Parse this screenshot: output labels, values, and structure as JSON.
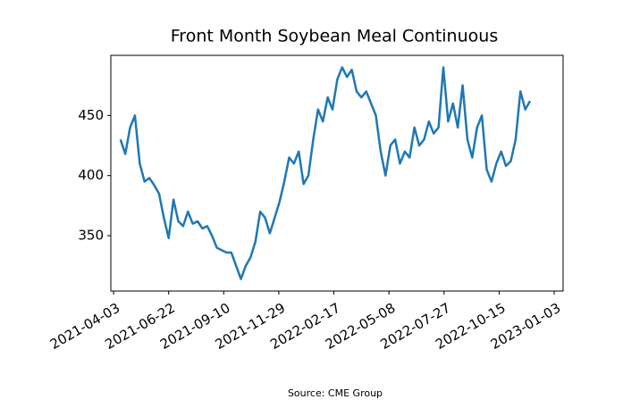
{
  "chart_data": {
    "type": "line",
    "title": "Front Month Soybean Meal Continuous",
    "source": "Source: CME Group",
    "x": [
      "2021-04-13",
      "2021-04-20",
      "2021-04-27",
      "2021-05-04",
      "2021-05-11",
      "2021-05-18",
      "2021-05-25",
      "2021-06-01",
      "2021-06-08",
      "2021-06-15",
      "2021-06-22",
      "2021-06-29",
      "2021-07-06",
      "2021-07-13",
      "2021-07-20",
      "2021-07-27",
      "2021-08-03",
      "2021-08-10",
      "2021-08-17",
      "2021-08-24",
      "2021-08-31",
      "2021-09-07",
      "2021-09-14",
      "2021-09-21",
      "2021-09-28",
      "2021-10-05",
      "2021-10-12",
      "2021-10-19",
      "2021-10-26",
      "2021-11-02",
      "2021-11-09",
      "2021-11-16",
      "2021-11-23",
      "2021-11-30",
      "2021-12-07",
      "2021-12-14",
      "2021-12-21",
      "2021-12-28",
      "2022-01-04",
      "2022-01-11",
      "2022-01-18",
      "2022-01-25",
      "2022-02-01",
      "2022-02-08",
      "2022-02-15",
      "2022-02-22",
      "2022-03-01",
      "2022-03-08",
      "2022-03-15",
      "2022-03-22",
      "2022-03-29",
      "2022-04-05",
      "2022-04-12",
      "2022-04-19",
      "2022-04-26",
      "2022-05-03",
      "2022-05-10",
      "2022-05-17",
      "2022-05-24",
      "2022-05-31",
      "2022-06-07",
      "2022-06-14",
      "2022-06-21",
      "2022-06-28",
      "2022-07-05",
      "2022-07-12",
      "2022-07-19",
      "2022-07-26",
      "2022-08-02",
      "2022-08-09",
      "2022-08-16",
      "2022-08-23",
      "2022-08-30",
      "2022-09-06",
      "2022-09-13",
      "2022-09-20",
      "2022-09-27",
      "2022-10-04",
      "2022-10-11",
      "2022-10-18",
      "2022-10-25",
      "2022-11-01",
      "2022-11-08",
      "2022-11-15",
      "2022-11-22",
      "2022-11-29"
    ],
    "series": [
      {
        "color": "#1f77b4",
        "values": [
          430,
          418,
          440,
          450,
          410,
          395,
          398,
          392,
          385,
          365,
          348,
          380,
          362,
          358,
          370,
          360,
          362,
          356,
          358,
          350,
          340,
          338,
          336,
          336,
          325,
          314,
          325,
          332,
          345,
          370,
          365,
          352,
          365,
          378,
          395,
          415,
          410,
          420,
          393,
          400,
          430,
          455,
          445,
          465,
          455,
          480,
          490,
          482,
          488,
          470,
          465,
          470,
          460,
          450,
          420,
          400,
          425,
          430,
          410,
          420,
          415,
          440,
          425,
          430,
          445,
          435,
          440,
          490,
          445,
          460,
          440,
          475,
          430,
          415,
          440,
          450,
          405,
          395,
          410,
          420,
          408,
          412,
          430,
          470,
          455,
          462
        ]
      }
    ],
    "xlim": [
      "2021-03-30",
      "2023-01-16"
    ],
    "xticks": [
      "2021-04-03",
      "2021-06-22",
      "2021-09-10",
      "2021-11-29",
      "2022-02-17",
      "2022-05-08",
      "2022-07-27",
      "2022-10-15",
      "2023-01-03"
    ],
    "ylim": [
      304,
      500
    ],
    "yticks": [
      350,
      400,
      450
    ],
    "grid": false
  }
}
